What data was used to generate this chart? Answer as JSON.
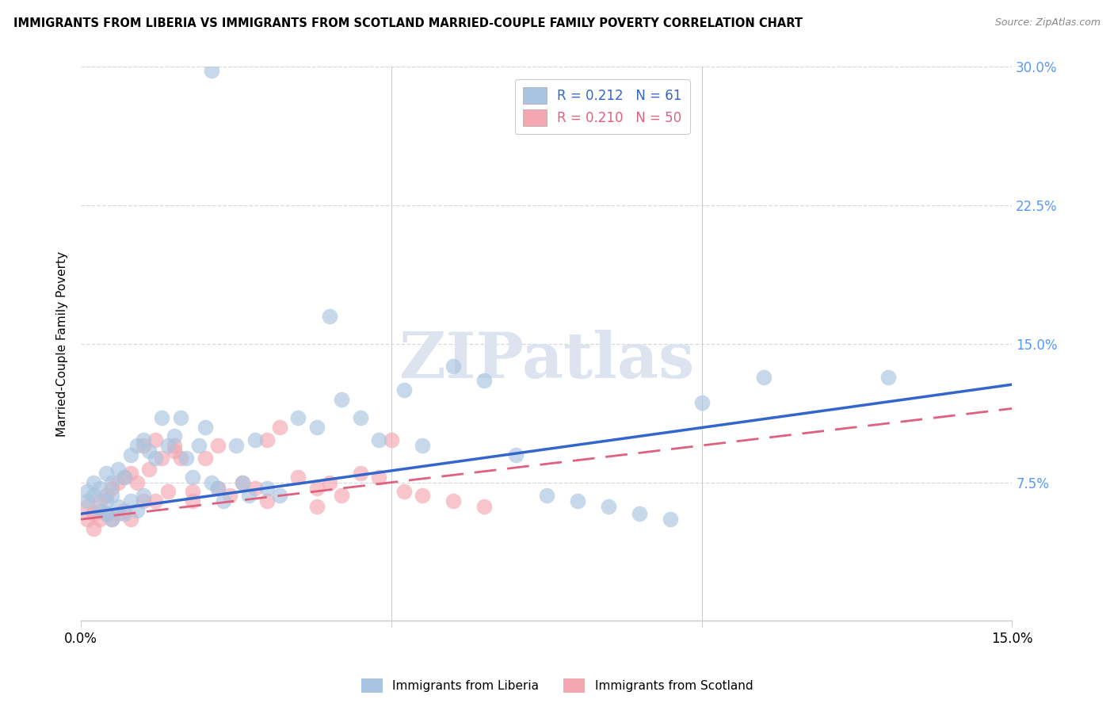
{
  "title": "IMMIGRANTS FROM LIBERIA VS IMMIGRANTS FROM SCOTLAND MARRIED-COUPLE FAMILY POVERTY CORRELATION CHART",
  "source": "Source: ZipAtlas.com",
  "ylabel": "Married-Couple Family Poverty",
  "xmin": 0.0,
  "xmax": 0.15,
  "ymin": 0.0,
  "ymax": 0.3,
  "yticks": [
    0.0,
    0.075,
    0.15,
    0.225,
    0.3
  ],
  "ytick_labels": [
    "",
    "7.5%",
    "15.0%",
    "22.5%",
    "30.0%"
  ],
  "xticks": [
    0.0,
    0.05,
    0.1,
    0.15
  ],
  "xtick_labels": [
    "0.0%",
    "",
    "",
    "15.0%"
  ],
  "R_liberia": 0.212,
  "N_liberia": 61,
  "R_scotland": 0.21,
  "N_scotland": 50,
  "color_liberia": "#a8c4e0",
  "color_scotland": "#f4a7b0",
  "color_line_liberia": "#3366cc",
  "color_line_scotland": "#e06080",
  "liberia_x": [
    0.001,
    0.001,
    0.002,
    0.002,
    0.003,
    0.003,
    0.004,
    0.004,
    0.004,
    0.005,
    0.005,
    0.005,
    0.006,
    0.006,
    0.007,
    0.007,
    0.008,
    0.008,
    0.009,
    0.009,
    0.01,
    0.01,
    0.011,
    0.012,
    0.013,
    0.014,
    0.015,
    0.016,
    0.017,
    0.018,
    0.019,
    0.02,
    0.021,
    0.022,
    0.023,
    0.025,
    0.026,
    0.027,
    0.028,
    0.03,
    0.032,
    0.035,
    0.038,
    0.04,
    0.042,
    0.045,
    0.048,
    0.052,
    0.055,
    0.06,
    0.065,
    0.07,
    0.075,
    0.08,
    0.085,
    0.09,
    0.095,
    0.1,
    0.11,
    0.13,
    0.021
  ],
  "liberia_y": [
    0.07,
    0.065,
    0.075,
    0.068,
    0.072,
    0.06,
    0.08,
    0.065,
    0.058,
    0.075,
    0.068,
    0.055,
    0.082,
    0.062,
    0.078,
    0.058,
    0.09,
    0.065,
    0.095,
    0.06,
    0.098,
    0.068,
    0.092,
    0.088,
    0.11,
    0.095,
    0.1,
    0.11,
    0.088,
    0.078,
    0.095,
    0.105,
    0.075,
    0.072,
    0.065,
    0.095,
    0.075,
    0.068,
    0.098,
    0.072,
    0.068,
    0.11,
    0.105,
    0.165,
    0.12,
    0.11,
    0.098,
    0.125,
    0.095,
    0.138,
    0.13,
    0.09,
    0.068,
    0.065,
    0.062,
    0.058,
    0.055,
    0.118,
    0.132,
    0.132,
    0.298
  ],
  "scotland_x": [
    0.001,
    0.001,
    0.002,
    0.002,
    0.003,
    0.003,
    0.004,
    0.004,
    0.005,
    0.005,
    0.006,
    0.006,
    0.007,
    0.007,
    0.008,
    0.008,
    0.009,
    0.01,
    0.011,
    0.012,
    0.013,
    0.014,
    0.015,
    0.016,
    0.018,
    0.02,
    0.022,
    0.024,
    0.026,
    0.028,
    0.03,
    0.032,
    0.035,
    0.038,
    0.04,
    0.042,
    0.045,
    0.048,
    0.05,
    0.052,
    0.055,
    0.06,
    0.065,
    0.01,
    0.012,
    0.015,
    0.018,
    0.022,
    0.03,
    0.038
  ],
  "scotland_y": [
    0.062,
    0.055,
    0.058,
    0.05,
    0.065,
    0.055,
    0.068,
    0.058,
    0.072,
    0.055,
    0.075,
    0.058,
    0.078,
    0.06,
    0.08,
    0.055,
    0.075,
    0.065,
    0.082,
    0.065,
    0.088,
    0.07,
    0.092,
    0.088,
    0.065,
    0.088,
    0.072,
    0.068,
    0.075,
    0.072,
    0.098,
    0.105,
    0.078,
    0.072,
    0.075,
    0.068,
    0.08,
    0.078,
    0.098,
    0.07,
    0.068,
    0.065,
    0.062,
    0.095,
    0.098,
    0.095,
    0.07,
    0.095,
    0.065,
    0.062
  ],
  "liberia_line_x": [
    0.0,
    0.15
  ],
  "liberia_line_y": [
    0.058,
    0.128
  ],
  "scotland_line_x": [
    0.0,
    0.15
  ],
  "scotland_line_y": [
    0.055,
    0.115
  ]
}
